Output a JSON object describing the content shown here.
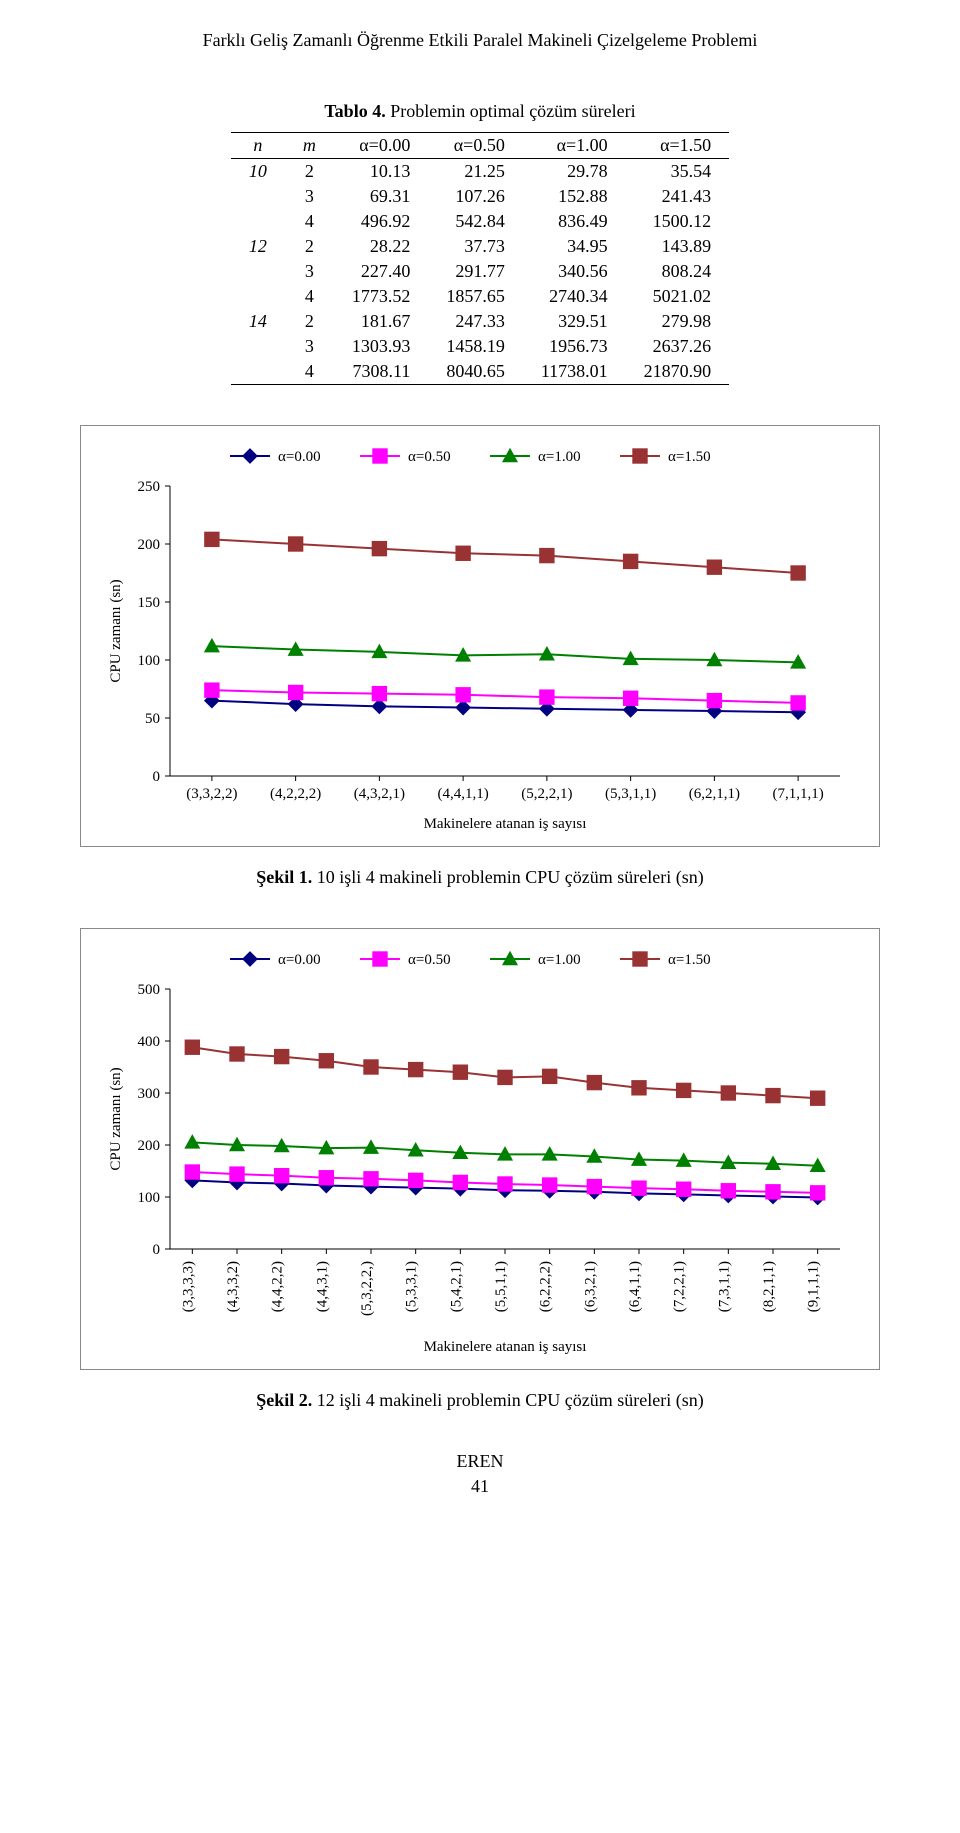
{
  "page": {
    "running_title": "Farklı Geliş Zamanlı Öğrenme Etkili Paralel Makineli Çizelgeleme Problemi",
    "author_footer": "EREN",
    "page_number": "41"
  },
  "table": {
    "caption_bold": "Tablo 4.",
    "caption_rest": " Problemin optimal çözüm süreleri",
    "headers": {
      "n": "n",
      "m": "m",
      "a0": "α=0.00",
      "a1": "α=0.50",
      "a2": "α=1.00",
      "a3": "α=1.50"
    },
    "rows": [
      {
        "n": "10",
        "m": "2",
        "v": [
          "10.13",
          "21.25",
          "29.78",
          "35.54"
        ]
      },
      {
        "n": "",
        "m": "3",
        "v": [
          "69.31",
          "107.26",
          "152.88",
          "241.43"
        ]
      },
      {
        "n": "",
        "m": "4",
        "v": [
          "496.92",
          "542.84",
          "836.49",
          "1500.12"
        ]
      },
      {
        "n": "12",
        "m": "2",
        "v": [
          "28.22",
          "37.73",
          "34.95",
          "143.89"
        ]
      },
      {
        "n": "",
        "m": "3",
        "v": [
          "227.40",
          "291.77",
          "340.56",
          "808.24"
        ]
      },
      {
        "n": "",
        "m": "4",
        "v": [
          "1773.52",
          "1857.65",
          "2740.34",
          "5021.02"
        ]
      },
      {
        "n": "14",
        "m": "2",
        "v": [
          "181.67",
          "247.33",
          "329.51",
          "279.98"
        ]
      },
      {
        "n": "",
        "m": "3",
        "v": [
          "1303.93",
          "1458.19",
          "1956.73",
          "2637.26"
        ]
      },
      {
        "n": "",
        "m": "4",
        "v": [
          "7308.11",
          "8040.65",
          "11738.01",
          "21870.90"
        ]
      }
    ]
  },
  "chart1": {
    "type": "line",
    "title": "",
    "ylabel": "CPU zamanı (sn)",
    "xlabel": "Makinelere atanan iş sayısı",
    "categories": [
      "(3,3,2,2)",
      "(4,2,2,2)",
      "(4,3,2,1)",
      "(4,4,1,1)",
      "(5,2,2,1)",
      "(5,3,1,1)",
      "(6,2,1,1)",
      "(7,1,1,1)"
    ],
    "ylim": [
      0,
      250
    ],
    "ytick_step": 50,
    "yticks": [
      "0",
      "50",
      "100",
      "150",
      "200",
      "250"
    ],
    "tick_fontsize": 15,
    "label_fontsize": 15,
    "legend_fontsize": 15,
    "line_width": 2,
    "marker_size": 9,
    "background_color": "#ffffff",
    "grid": "none",
    "axis_color": "#000000",
    "series": [
      {
        "label": "α=0.00",
        "color": "#000080",
        "marker": "diamond",
        "values": [
          65,
          62,
          60,
          59,
          58,
          57,
          56,
          55
        ]
      },
      {
        "label": "α=0.50",
        "color": "#ff00ff",
        "marker": "square",
        "values": [
          74,
          72,
          71,
          70,
          68,
          67,
          65,
          63
        ]
      },
      {
        "label": "α=1.00",
        "color": "#008000",
        "marker": "triangle",
        "values": [
          112,
          109,
          107,
          104,
          105,
          101,
          100,
          98
        ]
      },
      {
        "label": "α=1.50",
        "color": "#993333",
        "marker": "square",
        "values": [
          204,
          200,
          196,
          192,
          190,
          185,
          180,
          175
        ]
      }
    ]
  },
  "fig1": {
    "caption_bold": "Şekil 1.",
    "caption_rest": " 10 işli 4 makineli problemin CPU çözüm süreleri (sn)"
  },
  "chart2": {
    "type": "line",
    "title": "",
    "ylabel": "CPU zamanı (sn)",
    "xlabel": "Makinelere atanan iş sayısı",
    "categories": [
      "(3,3,3,3)",
      "(4,3,3,2)",
      "(4,4,2,2)",
      "(4,4,3,1)",
      "(5,3,2,2,)",
      "(5,3,3,1)",
      "(5,4,2,1)",
      "(5,5,1,1)",
      "(6,2,2,2)",
      "(6,3,2,1)",
      "(6,4,1,1)",
      "(7,2,2,1)",
      "(7,3,1,1)",
      "(8,2,1,1)",
      "(9,1,1,1)"
    ],
    "ylim": [
      0,
      500
    ],
    "ytick_step": 100,
    "yticks": [
      "0",
      "100",
      "200",
      "300",
      "400",
      "500"
    ],
    "tick_fontsize": 15,
    "label_fontsize": 15,
    "legend_fontsize": 15,
    "line_width": 2,
    "marker_size": 9,
    "background_color": "#ffffff",
    "grid": "none",
    "axis_color": "#000000",
    "xlabel_rotation": -90,
    "series": [
      {
        "label": "α=0.00",
        "color": "#000080",
        "marker": "diamond",
        "values": [
          132,
          128,
          126,
          122,
          120,
          118,
          116,
          113,
          112,
          110,
          107,
          105,
          103,
          101,
          99
        ]
      },
      {
        "label": "α=0.50",
        "color": "#ff00ff",
        "marker": "square",
        "values": [
          148,
          144,
          141,
          137,
          135,
          132,
          128,
          125,
          123,
          120,
          117,
          115,
          112,
          110,
          108
        ]
      },
      {
        "label": "α=1.00",
        "color": "#008000",
        "marker": "triangle",
        "values": [
          205,
          200,
          198,
          194,
          195,
          190,
          185,
          182,
          182,
          178,
          172,
          170,
          166,
          164,
          160
        ]
      },
      {
        "label": "α=1.50",
        "color": "#993333",
        "marker": "square",
        "values": [
          388,
          375,
          370,
          362,
          350,
          345,
          340,
          330,
          332,
          320,
          310,
          305,
          300,
          295,
          290
        ]
      }
    ]
  },
  "fig2": {
    "caption_bold": "Şekil 2.",
    "caption_rest": " 12 işli 4 makineli problemin CPU çözüm süreleri (sn)"
  }
}
